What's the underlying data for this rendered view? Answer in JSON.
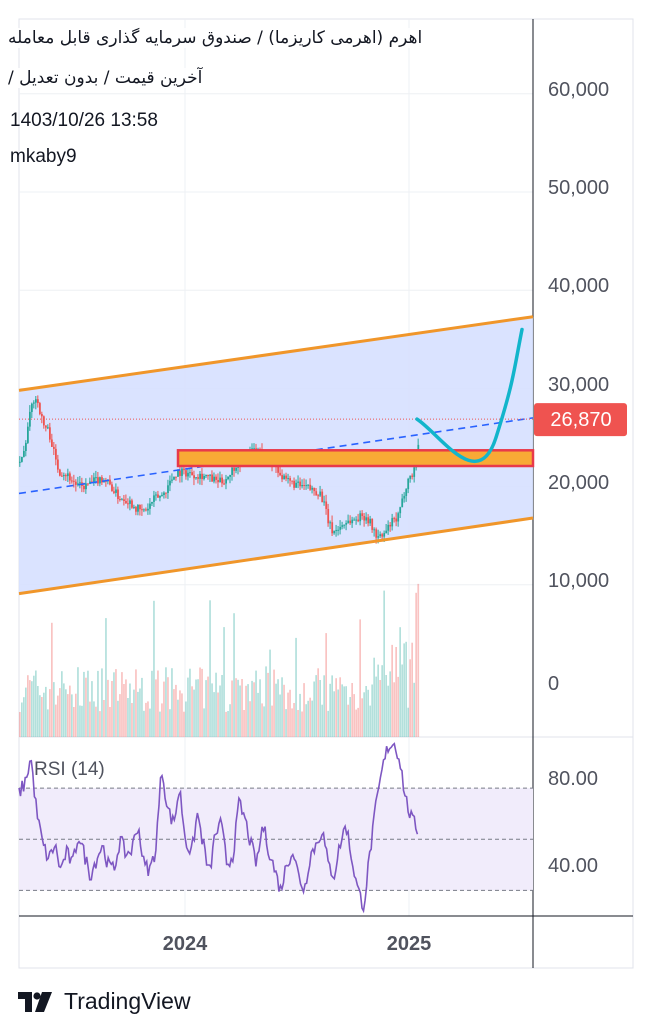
{
  "header": {
    "title": "اهرم (اهرمی کاریزما) / صندوق سرمایه گذاری قابل معامله",
    "subtitle": "آخرین قیمت / بدون تعدیل /",
    "timestamp": "1403/10/26 13:58",
    "author": "mkaby9"
  },
  "brand": {
    "name": "TradingView",
    "icon": "tradingview-logo-icon"
  },
  "colors": {
    "channel_fill": "#d6e0ff",
    "channel_border": "#f0962a",
    "zone_fill": "#f8a935",
    "zone_border": "#e8394a",
    "midline": "#2962ff",
    "projection": "#12b5cb",
    "up_candle": "#26a69a",
    "down_candle": "#ef5350",
    "price_badge": "#ef5350",
    "rsi_line": "#7e57c2",
    "rsi_band": "#f1ecfb"
  },
  "chart_data": [
    {
      "type": "candlestick",
      "title": "اهرم (اهرمی کاریزما) / صندوق سرمایه گذاری قابل معامله",
      "x_ticks": [
        "2024",
        "2025"
      ],
      "y_ticks": [
        "60,000",
        "50,000",
        "40,000",
        "30,000",
        "20,000",
        "10,000",
        "0"
      ],
      "ylim": [
        0,
        66000
      ],
      "last_price": 26870,
      "last_price_label": "26,870",
      "price_path_approx": [
        {
          "t": 0.0,
          "close": 22500
        },
        {
          "t": 0.03,
          "close": 29000
        },
        {
          "t": 0.05,
          "close": 26000
        },
        {
          "t": 0.08,
          "close": 21500
        },
        {
          "t": 0.12,
          "close": 20000
        },
        {
          "t": 0.16,
          "close": 20800
        },
        {
          "t": 0.2,
          "close": 18800
        },
        {
          "t": 0.24,
          "close": 17500
        },
        {
          "t": 0.27,
          "close": 19000
        },
        {
          "t": 0.31,
          "close": 21500
        },
        {
          "t": 0.35,
          "close": 21200
        },
        {
          "t": 0.39,
          "close": 20500
        },
        {
          "t": 0.43,
          "close": 22500
        },
        {
          "t": 0.46,
          "close": 23800
        },
        {
          "t": 0.49,
          "close": 22500
        },
        {
          "t": 0.52,
          "close": 20500
        },
        {
          "t": 0.55,
          "close": 20000
        },
        {
          "t": 0.58,
          "close": 19500
        },
        {
          "t": 0.61,
          "close": 15500
        },
        {
          "t": 0.64,
          "close": 16500
        },
        {
          "t": 0.67,
          "close": 17000
        },
        {
          "t": 0.7,
          "close": 14800
        },
        {
          "t": 0.73,
          "close": 16500
        },
        {
          "t": 0.76,
          "close": 21000
        },
        {
          "t": 0.79,
          "close": 27500
        },
        {
          "t": 0.81,
          "close": 29500
        },
        {
          "t": 0.83,
          "close": 26870
        }
      ],
      "drawings": {
        "channel_upper": {
          "start": 29800,
          "end": 37300
        },
        "channel_lower": {
          "start": 9100,
          "end": 16800
        },
        "channel_midline": {
          "start": 19300,
          "end": 27000
        },
        "support_zone": {
          "low": 22100,
          "high": 23700
        },
        "projection": [
          26870,
          22800,
          25000,
          36000
        ]
      }
    },
    {
      "type": "line",
      "title": "RSI (14)",
      "y_ticks": [
        "80.00",
        "40.00"
      ],
      "ylim": [
        20,
        90
      ],
      "levels": [
        70,
        50,
        30
      ],
      "values": [
        68,
        72,
        82,
        60,
        48,
        42,
        48,
        38,
        45,
        40,
        52,
        44,
        36,
        42,
        48,
        40,
        38,
        50,
        44,
        46,
        56,
        40,
        38,
        46,
        78,
        62,
        56,
        70,
        50,
        44,
        60,
        48,
        36,
        52,
        56,
        40,
        44,
        64,
        58,
        48,
        40,
        56,
        46,
        38,
        30,
        40,
        46,
        36,
        30,
        44,
        48,
        54,
        40,
        36,
        48,
        56,
        42,
        30,
        24,
        44,
        62,
        76,
        86,
        88,
        82,
        66,
        58,
        54
      ]
    }
  ]
}
